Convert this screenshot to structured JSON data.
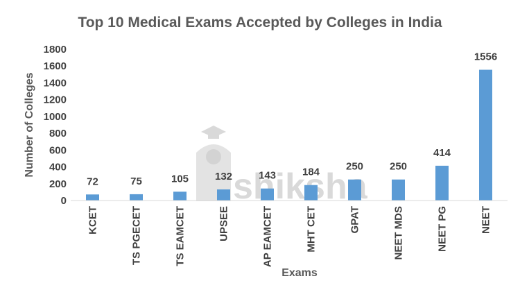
{
  "chart_data": {
    "type": "bar",
    "title": "Top 10 Medical Exams Accepted by Colleges in India",
    "xlabel": "Exams",
    "ylabel": "Number of Colleges",
    "categories": [
      "KCET",
      "TS PGECET",
      "TS EAMCET",
      "UPSEE",
      "AP EAMCET",
      "MHT CET",
      "GPAT",
      "NEET MDS",
      "NEET PG",
      "NEET"
    ],
    "values": [
      72,
      75,
      105,
      132,
      143,
      184,
      250,
      250,
      414,
      1556
    ],
    "ylim": [
      0,
      1800
    ],
    "yticks": [
      0,
      200,
      400,
      600,
      800,
      1000,
      1200,
      1400,
      1600,
      1800
    ],
    "grid": false,
    "bar_color": "#5b9bd5",
    "data_labels": true
  },
  "watermark": {
    "text": "shiksha",
    "icon": "graduation-cap-icon"
  }
}
